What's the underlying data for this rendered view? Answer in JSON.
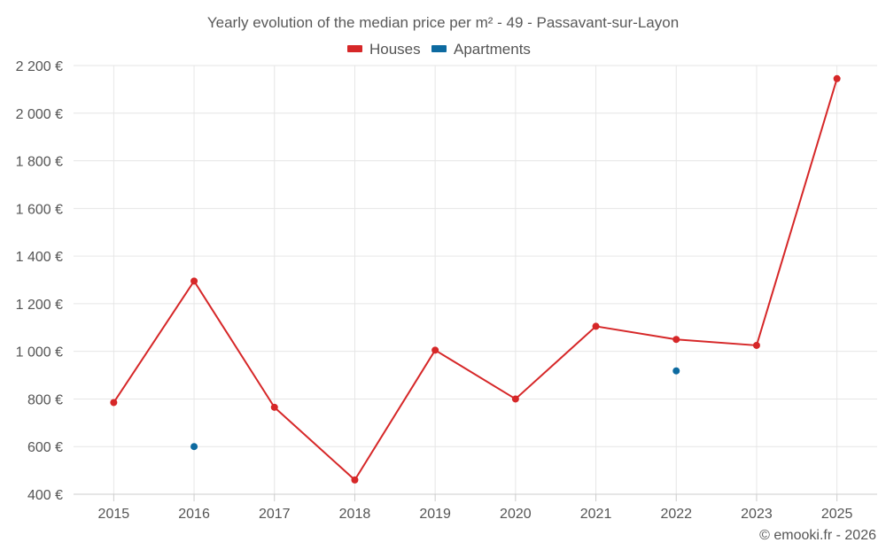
{
  "chart_data": {
    "type": "line",
    "title": "Yearly evolution of the median price per m² - 49 - Passavant-sur-Layon",
    "xlabel": "",
    "ylabel": "",
    "categories": [
      "2015",
      "2016",
      "2017",
      "2018",
      "2019",
      "2020",
      "2021",
      "2022",
      "2023",
      "2025"
    ],
    "ylim": [
      400,
      2200
    ],
    "yticks": [
      400,
      600,
      800,
      1000,
      1200,
      1400,
      1600,
      1800,
      2000,
      2200
    ],
    "ytick_labels": [
      "400 €",
      "600 €",
      "800 €",
      "1 000 €",
      "1 200 €",
      "1 400 €",
      "1 600 €",
      "1 800 €",
      "2 000 €",
      "2 200 €"
    ],
    "grid": true,
    "legend_position": "top-center",
    "series": [
      {
        "name": "Houses",
        "color": "#d62728",
        "values": [
          785,
          1295,
          765,
          460,
          1005,
          800,
          1105,
          1050,
          1025,
          2145
        ]
      },
      {
        "name": "Apartments",
        "color": "#0d6aa0",
        "values": [
          null,
          600,
          null,
          null,
          null,
          null,
          null,
          918,
          null,
          null
        ]
      }
    ],
    "credit": "© emooki.fr - 2026"
  }
}
